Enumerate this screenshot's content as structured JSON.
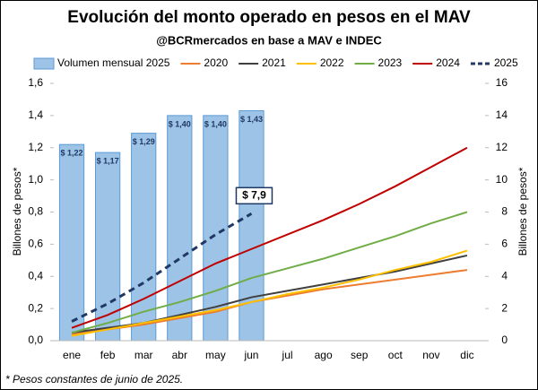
{
  "chart_data": {
    "type": "bar-line",
    "title": "Evolución del monto operado en pesos en el MAV",
    "subtitle": "@BCRmercados en base a MAV e INDEC",
    "y_label": "Billones de pesos*",
    "y2_label": "Billones de pesos*",
    "footnote": "* Pesos constantes de junio de 2025.",
    "categories": [
      "ene",
      "feb",
      "mar",
      "abr",
      "may",
      "jun",
      "jul",
      "ago",
      "sep",
      "oct",
      "nov",
      "dic"
    ],
    "ylim": [
      0,
      1.6
    ],
    "yticks": [
      {
        "value": 0,
        "label": "0,0"
      },
      {
        "value": 0.2,
        "label": "0,2"
      },
      {
        "value": 0.4,
        "label": "0,4"
      },
      {
        "value": 0.6,
        "label": "0,6"
      },
      {
        "value": 0.8,
        "label": "0,8"
      },
      {
        "value": 1.0,
        "label": "1,0"
      },
      {
        "value": 1.2,
        "label": "1,2"
      },
      {
        "value": 1.4,
        "label": "1,4"
      },
      {
        "value": 1.6,
        "label": "1,6"
      }
    ],
    "y2lim": [
      0,
      16
    ],
    "y2ticks": [
      0,
      2,
      4,
      6,
      8,
      10,
      12,
      14,
      16
    ],
    "grid": false,
    "series": [
      {
        "name": "Volumen mensual 2025",
        "type": "bar",
        "axis": "y",
        "color": "#9dc3e6",
        "values": [
          1.22,
          1.17,
          1.29,
          1.4,
          1.4,
          1.43,
          null,
          null,
          null,
          null,
          null,
          null
        ],
        "value_labels": [
          "$ 1,22",
          "$ 1,17",
          "$ 1,29",
          "$ 1,40",
          "$ 1,40",
          "$ 1,43",
          null,
          null,
          null,
          null,
          null,
          null
        ]
      },
      {
        "name": "2020",
        "type": "line",
        "axis": "y2",
        "color": "#ed7d31",
        "values": [
          0.4,
          0.7,
          1.0,
          1.4,
          1.8,
          2.4,
          2.8,
          3.2,
          3.5,
          3.8,
          4.1,
          4.4
        ]
      },
      {
        "name": "2021",
        "type": "line",
        "axis": "y2",
        "color": "#404040",
        "values": [
          0.5,
          0.8,
          1.1,
          1.6,
          2.1,
          2.7,
          3.1,
          3.5,
          3.9,
          4.3,
          4.8,
          5.3
        ]
      },
      {
        "name": "2022",
        "type": "line",
        "axis": "y2",
        "color": "#ffc000",
        "values": [
          0.3,
          0.7,
          1.1,
          1.5,
          1.9,
          2.4,
          2.9,
          3.3,
          3.8,
          4.4,
          4.9,
          5.6
        ]
      },
      {
        "name": "2023",
        "type": "line",
        "axis": "y2",
        "color": "#70ad47",
        "values": [
          0.5,
          1.1,
          1.8,
          2.4,
          3.1,
          3.9,
          4.5,
          5.1,
          5.8,
          6.5,
          7.3,
          8.0
        ]
      },
      {
        "name": "2024",
        "type": "line",
        "axis": "y2",
        "color": "#c00000",
        "values": [
          0.8,
          1.6,
          2.6,
          3.7,
          4.8,
          5.7,
          6.6,
          7.5,
          8.5,
          9.6,
          10.8,
          12.0
        ]
      },
      {
        "name": "2025",
        "type": "line",
        "axis": "y2",
        "color": "#1f3864",
        "dashed": true,
        "values": [
          1.2,
          2.3,
          3.6,
          5.1,
          6.6,
          7.9,
          null,
          null,
          null,
          null,
          null,
          null
        ],
        "value_labels": [
          null,
          null,
          null,
          null,
          null,
          "$ 7,9",
          null,
          null,
          null,
          null,
          null,
          null
        ]
      }
    ]
  }
}
